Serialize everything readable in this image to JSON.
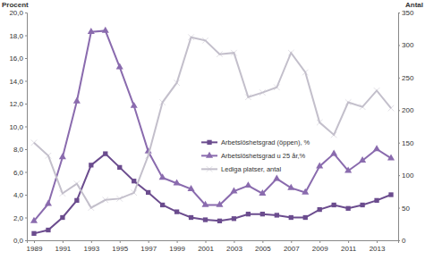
{
  "chart_data": {
    "type": "line",
    "y_label": "Procent",
    "y2_label": "Antal",
    "x": [
      1989,
      1990,
      1991,
      1992,
      1993,
      1994,
      1995,
      1996,
      1997,
      1998,
      1999,
      2000,
      2001,
      2002,
      2003,
      2004,
      2005,
      2006,
      2007,
      2008,
      2009,
      2010,
      2011,
      2012,
      2013,
      2014
    ],
    "xlim": [
      1988.5,
      2014.5
    ],
    "xticks": [
      1989,
      1991,
      1993,
      1995,
      1997,
      1999,
      2001,
      2003,
      2005,
      2007,
      2009,
      2011,
      2013
    ],
    "ylim": [
      0,
      20
    ],
    "yticks": [
      {
        "value": 0,
        "label": "0,0"
      },
      {
        "value": 2,
        "label": "2,0"
      },
      {
        "value": 4,
        "label": "4,0"
      },
      {
        "value": 6,
        "label": "6,0"
      },
      {
        "value": 8,
        "label": "8,0"
      },
      {
        "value": 10,
        "label": "10,0"
      },
      {
        "value": 12,
        "label": "12,0"
      },
      {
        "value": 14,
        "label": "14,0"
      },
      {
        "value": 16,
        "label": "16,0"
      },
      {
        "value": 18,
        "label": "18,0"
      },
      {
        "value": 20,
        "label": "20,0"
      }
    ],
    "y2lim": [
      0,
      350
    ],
    "y2ticks": [
      0,
      50,
      100,
      150,
      200,
      250,
      300,
      350
    ],
    "grid": false,
    "legend": "center",
    "series": [
      {
        "name": "Arbetslöshetsgrad (öppen), %",
        "color": "#6b4c8e",
        "marker": "square",
        "values": [
          0.6,
          0.9,
          2.0,
          3.5,
          6.6,
          7.6,
          6.4,
          5.2,
          4.2,
          3.1,
          2.5,
          2.0,
          1.8,
          1.7,
          1.9,
          2.3,
          2.3,
          2.2,
          2.0,
          2.0,
          2.7,
          3.1,
          2.8,
          3.1,
          3.5,
          4.0
        ]
      },
      {
        "name": "Arbetslöshetsgrad u 25 år,%",
        "color": "#8a6bae",
        "marker": "triangle",
        "values": [
          1.7,
          3.2,
          7.3,
          12.2,
          18.3,
          18.4,
          15.2,
          11.8,
          7.8,
          5.5,
          5.0,
          4.5,
          3.1,
          3.1,
          4.3,
          4.8,
          4.1,
          5.4,
          4.6,
          4.2,
          6.5,
          7.6,
          6.1,
          7.0,
          8.0,
          7.2
        ]
      },
      {
        "name": "Lediga platser, antal",
        "color": "#c3bfcb",
        "marker": "x",
        "axis": "y2",
        "values": [
          150,
          130,
          72,
          87,
          50,
          62,
          64,
          73,
          130,
          212,
          242,
          312,
          307,
          286,
          288,
          220,
          227,
          235,
          288,
          258,
          181,
          162,
          212,
          205,
          230,
          203
        ]
      }
    ]
  }
}
